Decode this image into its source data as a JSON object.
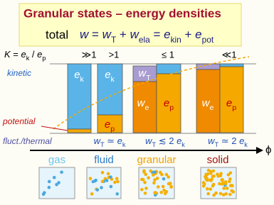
{
  "header": {
    "title": "Granular states – energy densities",
    "total_label": "total",
    "formula": [
      {
        "text": "w",
        "italic": true
      },
      {
        "text": " = "
      },
      {
        "text": "w",
        "italic": true
      },
      {
        "text": "T",
        "sub": true
      },
      {
        "text": " + "
      },
      {
        "text": "w",
        "italic": true
      },
      {
        "text": "ela",
        "sub": true
      },
      {
        "text": " = "
      },
      {
        "text": "e",
        "italic": true
      },
      {
        "text": "kin",
        "sub": true
      },
      {
        "text": " + "
      },
      {
        "text": "e",
        "italic": true
      },
      {
        "text": "pot",
        "sub": true
      }
    ]
  },
  "ratio_row": {
    "label": [
      {
        "text": "K",
        "italic": true
      },
      {
        "text": " = "
      },
      {
        "text": "e",
        "italic": true
      },
      {
        "text": "k",
        "sub": true
      },
      {
        "text": " / "
      },
      {
        "text": "e",
        "italic": true
      },
      {
        "text": "p",
        "sub": true
      }
    ],
    "values": [
      "≫1",
      ">1",
      "≤ 1",
      "≪1"
    ]
  },
  "side_labels": {
    "kinetic": "kinetic",
    "potential": "potential"
  },
  "bar_labels": {
    "col1_top": [
      {
        "text": "e",
        "italic": true
      },
      {
        "text": "k",
        "sub": true
      }
    ],
    "col2_top": [
      {
        "text": "e",
        "italic": true
      },
      {
        "text": "k",
        "sub": true
      }
    ],
    "col2_bottom": [
      {
        "text": "e",
        "italic": true
      },
      {
        "text": "p",
        "sub": true
      }
    ],
    "col3_wt": [
      {
        "text": "w",
        "italic": true
      },
      {
        "text": "T",
        "sub": true
      }
    ],
    "col3_we": [
      {
        "text": "w",
        "italic": true
      },
      {
        "text": "e",
        "sub": true
      }
    ],
    "col3_ep": [
      {
        "text": "e",
        "italic": true
      },
      {
        "text": "p",
        "sub": true
      }
    ],
    "col4_we": [
      {
        "text": "w",
        "italic": true
      },
      {
        "text": "e",
        "sub": true
      }
    ],
    "col4_ep": [
      {
        "text": "e",
        "italic": true
      },
      {
        "text": "p",
        "sub": true
      }
    ]
  },
  "fluct_row": {
    "label": "fluct./thermal",
    "items": [
      [
        {
          "text": "w",
          "italic": true
        },
        {
          "text": "T",
          "sub": true
        },
        {
          "text": " ≃ "
        },
        {
          "text": "e",
          "italic": true
        },
        {
          "text": "k",
          "sub": true
        }
      ],
      [
        {
          "text": "w",
          "italic": true
        },
        {
          "text": "T",
          "sub": true
        },
        {
          "text": " ≲ 2 "
        },
        {
          "text": "e",
          "italic": true
        },
        {
          "text": "k",
          "sub": true
        }
      ],
      [
        {
          "text": "w",
          "italic": true
        },
        {
          "text": "T",
          "sub": true
        },
        {
          "text": " ≃ 2 "
        },
        {
          "text": "e",
          "italic": true
        },
        {
          "text": "k",
          "sub": true
        }
      ]
    ]
  },
  "axis_symbol": "ϕ",
  "states": [
    "gas",
    "fluid",
    "granular",
    "solid"
  ]
}
